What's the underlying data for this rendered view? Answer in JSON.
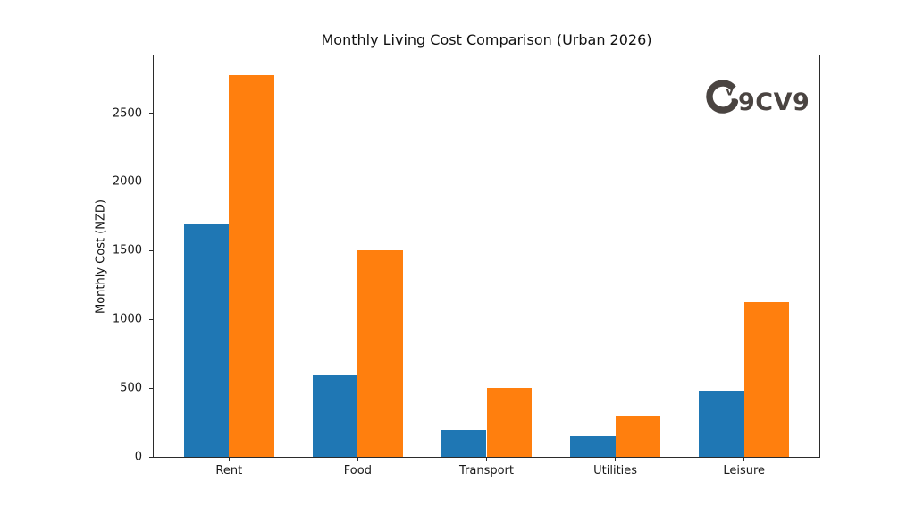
{
  "chart_data": {
    "type": "bar",
    "title": "Monthly Living Cost Comparison (Urban 2026)",
    "xlabel": "",
    "ylabel": "Monthly Cost (NZD)",
    "categories": [
      "Rent",
      "Food",
      "Transport",
      "Utilities",
      "Leisure"
    ],
    "series": [
      {
        "color": "#1f77b4",
        "values": [
          1690,
          600,
          195,
          150,
          480
        ]
      },
      {
        "color": "#ff7f0e",
        "values": [
          2780,
          1500,
          500,
          300,
          1125
        ]
      }
    ],
    "yticks": [
      0,
      500,
      1000,
      1500,
      2000,
      2500
    ],
    "ylim": [
      0,
      2920
    ],
    "grid": false,
    "legend_position": "none"
  },
  "watermark": {
    "brand": "9CV9",
    "mark_letter": "v",
    "color": "#4a4441"
  },
  "colors": {
    "axis": "#2b2b2b",
    "text": "#1a1a1a",
    "background": "#ffffff"
  }
}
